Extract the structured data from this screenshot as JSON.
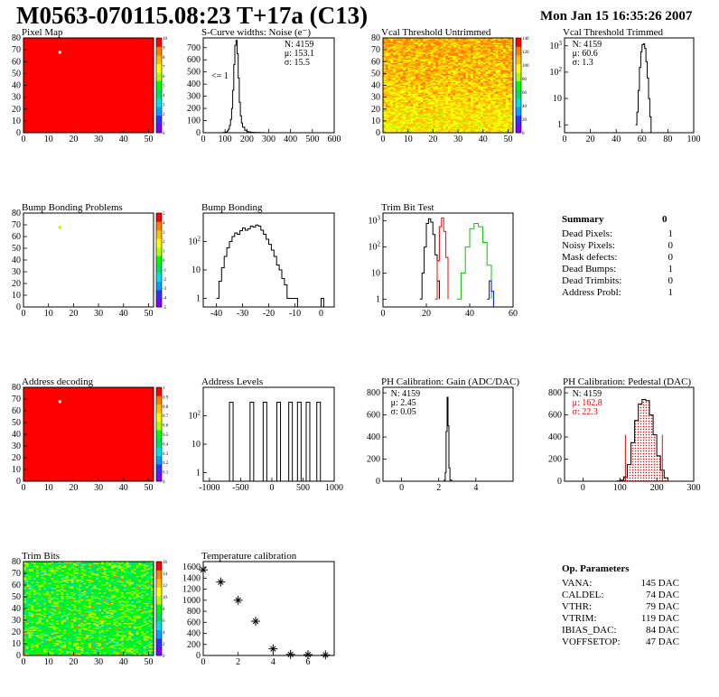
{
  "title": "M0563-070115.08:23 T+17a (C13)",
  "date": "Mon Jan 15 16:35:26 2007",
  "colors": {
    "red": "#ff0000",
    "green": "#00cc00",
    "black": "#000000"
  },
  "chart_data": [
    {
      "id": "pixel-map",
      "type": "heatmap",
      "title": "Pixel Map",
      "xlim": [
        0,
        52
      ],
      "ylim": [
        0,
        80
      ],
      "xticks": [
        0,
        10,
        20,
        30,
        40,
        50
      ],
      "yticks": [
        0,
        10,
        20,
        30,
        40,
        50,
        60,
        70,
        80
      ],
      "zlim": [
        0,
        10
      ],
      "zticks": [
        0,
        1,
        2,
        3,
        4,
        5,
        6,
        7,
        8,
        9,
        10
      ],
      "fill": "uniform-high",
      "special_cells": [
        {
          "x": 14,
          "y": 68,
          "value": 0
        }
      ]
    },
    {
      "id": "s-curve",
      "type": "line",
      "title": "S-Curve widths: Noise (e⁻)",
      "xlim": [
        0,
        600
      ],
      "ylim": [
        0,
        780
      ],
      "xticks": [
        0,
        100,
        200,
        300,
        400,
        500,
        600
      ],
      "yticks": [
        0,
        100,
        200,
        300,
        400,
        500,
        600,
        700
      ],
      "stats": [
        {
          "label": "N: 4159"
        },
        {
          "label": "μ: 153.1"
        },
        {
          "label": "σ: 15.5"
        }
      ],
      "annotation": "<= 1",
      "x": [
        80,
        90,
        100,
        110,
        115,
        120,
        125,
        130,
        135,
        140,
        145,
        150,
        155,
        160,
        165,
        170,
        175,
        180,
        190,
        200,
        210,
        220,
        240,
        260,
        280
      ],
      "values": [
        0,
        2,
        5,
        15,
        30,
        60,
        110,
        200,
        350,
        560,
        720,
        760,
        650,
        450,
        250,
        140,
        80,
        45,
        20,
        10,
        5,
        3,
        2,
        1,
        0
      ]
    },
    {
      "id": "vcal-untrimmed",
      "type": "heatmap",
      "title": "Vcal Threshold Untrimmed",
      "xlim": [
        0,
        52
      ],
      "ylim": [
        0,
        80
      ],
      "xticks": [
        0,
        10,
        20,
        30,
        40,
        50
      ],
      "yticks": [
        0,
        10,
        20,
        30,
        40,
        50,
        60,
        70,
        80
      ],
      "zlim": [
        0,
        140
      ],
      "zticks": [
        0,
        20,
        40,
        60,
        80,
        100,
        120,
        140
      ],
      "fill": "orange-yellow"
    },
    {
      "id": "vcal-trimmed",
      "type": "line",
      "scale": "log",
      "title": "Vcal Threshold Trimmed",
      "xlim": [
        0,
        100
      ],
      "ylim": [
        0.5,
        2000
      ],
      "xticks": [
        0,
        20,
        40,
        60,
        80,
        100
      ],
      "yticks": [
        1,
        10,
        100,
        1000
      ],
      "stats": [
        {
          "label": "N: 4159"
        },
        {
          "label": "μ: 60.6"
        },
        {
          "label": "σ: 1.3"
        }
      ],
      "x": [
        55,
        56,
        57,
        58,
        59,
        60,
        61,
        62,
        63,
        64,
        65,
        66,
        67
      ],
      "values": [
        1,
        3,
        20,
        150,
        600,
        1100,
        1200,
        800,
        250,
        60,
        10,
        2,
        0.5
      ]
    },
    {
      "id": "bump-problems",
      "type": "heatmap",
      "title": "Bump Bonding Problems",
      "xlim": [
        0,
        52
      ],
      "ylim": [
        0,
        80
      ],
      "xticks": [
        0,
        10,
        20,
        30,
        40,
        50
      ],
      "yticks": [
        0,
        10,
        20,
        30,
        40,
        50,
        60,
        70,
        80
      ],
      "zlim": [
        -5,
        5
      ],
      "zticks": [
        -5,
        -4,
        -3,
        -2,
        -1,
        0,
        1,
        2,
        3,
        4,
        5
      ],
      "fill": "empty",
      "special_cells": [
        {
          "x": 14,
          "y": 68,
          "value": 1
        }
      ]
    },
    {
      "id": "bump-bonding",
      "type": "line",
      "scale": "log",
      "title": "Bump Bonding",
      "xlim": [
        -45,
        5
      ],
      "ylim": [
        0.5,
        1000
      ],
      "xticks": [
        -40,
        -30,
        -20,
        -10,
        0
      ],
      "yticks": [
        1,
        10,
        100
      ],
      "x": [
        -40,
        -39,
        -38,
        -37,
        -36,
        -35,
        -34,
        -33,
        -32,
        -31,
        -30,
        -29,
        -28,
        -27,
        -26,
        -25,
        -24,
        -23,
        -22,
        -21,
        -20,
        -19,
        -18,
        -17,
        -16,
        -15,
        -14,
        -13,
        -12,
        -11,
        -10,
        -9,
        -8,
        -7,
        -6,
        -5,
        -4,
        -3,
        -2,
        -1,
        0,
        1
      ],
      "values": [
        1,
        4,
        12,
        30,
        60,
        100,
        150,
        200,
        180,
        240,
        300,
        250,
        280,
        350,
        320,
        380,
        350,
        250,
        180,
        120,
        80,
        50,
        30,
        15,
        10,
        5,
        3,
        1,
        1,
        1,
        1,
        0,
        0,
        0,
        0,
        0,
        0,
        0,
        0,
        0,
        1,
        0
      ]
    },
    {
      "id": "trim-bit-test",
      "type": "line",
      "scale": "log",
      "title": "Trim Bit Test",
      "xlim": [
        0,
        60
      ],
      "ylim": [
        0.5,
        2000
      ],
      "xticks": [
        0,
        20,
        40,
        60
      ],
      "yticks": [
        1,
        10,
        100,
        1000
      ],
      "series": [
        {
          "color": "#000000",
          "x": [
            17,
            18,
            19,
            20,
            21,
            22,
            23,
            24,
            25,
            26
          ],
          "values": [
            1,
            10,
            100,
            800,
            1200,
            900,
            300,
            50,
            5,
            1
          ]
        },
        {
          "color": "#ff0000",
          "x": [
            24,
            25,
            26,
            27,
            28,
            29,
            30
          ],
          "values": [
            1,
            30,
            600,
            1300,
            400,
            40,
            1
          ]
        },
        {
          "color": "#00cc00",
          "x": [
            34,
            36,
            38,
            40,
            42,
            44,
            46,
            48,
            50
          ],
          "values": [
            1,
            10,
            100,
            500,
            800,
            600,
            150,
            20,
            1
          ]
        },
        {
          "color": "#0000ff",
          "x": [
            48,
            49,
            50,
            51
          ],
          "values": [
            1,
            5,
            2,
            0.5
          ]
        }
      ]
    },
    {
      "id": "address-decoding",
      "type": "heatmap",
      "title": "Address decoding",
      "xlim": [
        0,
        52
      ],
      "ylim": [
        0,
        80
      ],
      "xticks": [
        0,
        10,
        20,
        30,
        40,
        50
      ],
      "yticks": [
        0,
        10,
        20,
        30,
        40,
        50,
        60,
        70,
        80
      ],
      "zlim": [
        0,
        1
      ],
      "zticks": [
        0,
        0.1,
        0.2,
        0.3,
        0.4,
        0.5,
        0.6,
        0.7,
        0.8,
        0.9,
        1
      ],
      "fill": "uniform-high",
      "special_cells": [
        {
          "x": 14,
          "y": 68,
          "value": 0
        }
      ]
    },
    {
      "id": "address-levels",
      "type": "line",
      "scale": "log",
      "title": "Address Levels",
      "xlim": [
        -1100,
        1000
      ],
      "ylim": [
        0.5,
        1000
      ],
      "xticks": [
        -1000,
        -500,
        0,
        500,
        1000
      ],
      "yticks": [
        1,
        10,
        100
      ],
      "peaks": [
        -650,
        -320,
        -110,
        110,
        300,
        440,
        580,
        750
      ]
    },
    {
      "id": "ph-gain",
      "type": "line",
      "title": "PH Calibration: Gain (ADC/DAC)",
      "xlim": [
        -1,
        6
      ],
      "ylim": [
        0,
        850
      ],
      "xticks": [
        0,
        2,
        4
      ],
      "yticks": [
        0,
        200,
        400,
        600,
        800
      ],
      "stats": [
        {
          "label": "N: 4159"
        },
        {
          "label": "μ: 2.45"
        },
        {
          "label": "σ: 0.05"
        }
      ],
      "x": [
        2.2,
        2.3,
        2.35,
        2.4,
        2.45,
        2.5,
        2.55,
        2.6,
        2.7
      ],
      "values": [
        0,
        10,
        80,
        450,
        760,
        500,
        120,
        10,
        0
      ]
    },
    {
      "id": "ph-pedestal",
      "type": "line",
      "title": "PH Calibration: Pedestal (DAC)",
      "xlim": [
        -50,
        300
      ],
      "ylim": [
        0,
        850
      ],
      "xticks": [
        0,
        100,
        200,
        300
      ],
      "yticks": [
        0,
        200,
        400,
        600,
        800
      ],
      "stats": [
        {
          "label": "N: 4159"
        },
        {
          "label": "μ: 162.8",
          "color": "#ff0000"
        },
        {
          "label": "σ: 22.3",
          "color": "#ff0000"
        }
      ],
      "cut_lines": [
        115,
        215
      ],
      "x": [
        90,
        100,
        110,
        120,
        130,
        140,
        150,
        160,
        170,
        180,
        190,
        200,
        210,
        220,
        230
      ],
      "values": [
        2,
        10,
        40,
        150,
        350,
        550,
        700,
        740,
        730,
        600,
        420,
        230,
        100,
        30,
        5
      ]
    },
    {
      "id": "trim-bits",
      "type": "heatmap",
      "title": "Trim Bits",
      "xlim": [
        0,
        52
      ],
      "ylim": [
        0,
        80
      ],
      "xticks": [
        0,
        10,
        20,
        30,
        40,
        50
      ],
      "yticks": [
        0,
        10,
        20,
        30,
        40,
        50,
        60,
        70,
        80
      ],
      "zlim": [
        0,
        16
      ],
      "zticks": [
        0,
        2,
        4,
        6,
        8,
        10,
        12,
        14,
        16
      ],
      "fill": "green-noise"
    },
    {
      "id": "temperature",
      "type": "scatter",
      "title": "Temperature calibration",
      "xlim": [
        0,
        7.5
      ],
      "ylim": [
        0,
        1700
      ],
      "xticks": [
        0,
        2,
        4,
        6
      ],
      "yticks": [
        0,
        200,
        400,
        600,
        800,
        1000,
        1200,
        1400,
        1600
      ],
      "x": [
        0,
        1,
        2,
        3,
        4,
        5,
        6,
        7
      ],
      "values": [
        1550,
        1330,
        1000,
        620,
        120,
        20,
        15,
        10
      ]
    }
  ],
  "summary": {
    "title": "Summary",
    "total": "0",
    "rows": [
      {
        "label": "Dead Pixels:",
        "value": "1"
      },
      {
        "label": "Noisy Pixels:",
        "value": "0"
      },
      {
        "label": "Mask defects:",
        "value": "0"
      },
      {
        "label": "Dead Bumps:",
        "value": "1"
      },
      {
        "label": "Dead Trimbits:",
        "value": "0"
      },
      {
        "label": "Address Probl:",
        "value": "1"
      }
    ]
  },
  "op_params": {
    "title": "Op. Parameters",
    "rows": [
      {
        "label": "VANA:",
        "value": "145 DAC"
      },
      {
        "label": "CALDEL:",
        "value": "74 DAC"
      },
      {
        "label": "VTHR:",
        "value": "79 DAC"
      },
      {
        "label": "VTRIM:",
        "value": "119 DAC"
      },
      {
        "label": "IBIAS_DAC:",
        "value": "84 DAC"
      },
      {
        "label": "VOFFSETOP:",
        "value": "47 DAC"
      }
    ]
  }
}
